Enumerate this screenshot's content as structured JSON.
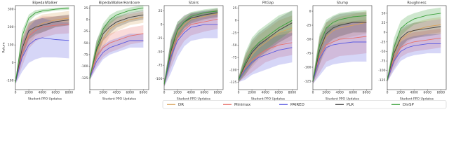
{
  "chart_data": [
    {
      "type": "line",
      "title": "BipedalWalker",
      "ylabel": "Return",
      "xlabel": "Student PPO Updates",
      "x": [
        0,
        1000,
        2000,
        3000,
        4000,
        6000,
        8000
      ],
      "xlim": [
        0,
        8800
      ],
      "xticks": [
        0,
        2000,
        4000,
        6000,
        8000
      ],
      "ylim": [
        -150,
        320
      ],
      "yticks": [
        -100,
        0,
        100,
        200,
        300
      ],
      "series": [
        {
          "name": "DR",
          "color": "#d9a25b",
          "values": [
            -110,
            80,
            160,
            200,
            220,
            240,
            250
          ],
          "std": [
            10,
            60,
            60,
            50,
            50,
            40,
            40
          ]
        },
        {
          "name": "Minimax",
          "color": "#e8706a",
          "values": [
            -110,
            50,
            150,
            180,
            200,
            210,
            215
          ],
          "std": [
            10,
            70,
            70,
            60,
            60,
            50,
            50
          ]
        },
        {
          "name": "PAIRED",
          "color": "#5a5ae0",
          "values": [
            -110,
            30,
            100,
            130,
            140,
            130,
            125
          ],
          "std": [
            10,
            80,
            100,
            110,
            110,
            100,
            100
          ]
        },
        {
          "name": "PLR",
          "color": "#404040",
          "values": [
            -110,
            80,
            180,
            200,
            210,
            230,
            240
          ],
          "std": [
            10,
            50,
            50,
            40,
            40,
            30,
            30
          ]
        },
        {
          "name": "DivSP",
          "color": "#3aa03a",
          "values": [
            -110,
            150,
            250,
            280,
            290,
            300,
            305
          ],
          "std": [
            10,
            30,
            20,
            15,
            10,
            8,
            8
          ]
        }
      ]
    },
    {
      "type": "line",
      "title": "BipedalWalkerHardcore",
      "xlabel": "Student PPO Updates",
      "x": [
        0,
        1000,
        2000,
        3000,
        4000,
        6000,
        8000
      ],
      "xlim": [
        0,
        8800
      ],
      "xticks": [
        0,
        2000,
        4000,
        6000,
        8000
      ],
      "ylim": [
        -150,
        30
      ],
      "yticks": [
        -125,
        -100,
        -75,
        -50,
        -25,
        0,
        25
      ],
      "series": [
        {
          "name": "DR",
          "color": "#d9a25b",
          "values": [
            -125,
            -70,
            -40,
            -20,
            -10,
            0,
            5
          ],
          "std": [
            5,
            20,
            20,
            15,
            15,
            12,
            12
          ]
        },
        {
          "name": "Minimax",
          "color": "#e8706a",
          "values": [
            -125,
            -80,
            -60,
            -50,
            -45,
            -35,
            -30
          ],
          "std": [
            5,
            20,
            20,
            20,
            20,
            18,
            18
          ]
        },
        {
          "name": "PAIRED",
          "color": "#5a5ae0",
          "values": [
            -125,
            -90,
            -70,
            -60,
            -55,
            -45,
            -45
          ],
          "std": [
            5,
            15,
            15,
            15,
            15,
            15,
            15
          ]
        },
        {
          "name": "PLR",
          "color": "#404040",
          "values": [
            -125,
            -65,
            -30,
            -15,
            -5,
            5,
            10
          ],
          "std": [
            5,
            20,
            15,
            15,
            12,
            10,
            10
          ]
        },
        {
          "name": "DivSP",
          "color": "#3aa03a",
          "values": [
            -125,
            -60,
            -20,
            0,
            10,
            20,
            25
          ],
          "std": [
            5,
            15,
            12,
            10,
            8,
            6,
            6
          ]
        }
      ]
    },
    {
      "type": "line",
      "title": "Stairs",
      "xlabel": "Student PPO Updates",
      "x": [
        0,
        1000,
        2000,
        3000,
        4000,
        6000,
        8000
      ],
      "xlim": [
        0,
        8800
      ],
      "xticks": [
        0,
        2000,
        4000,
        6000,
        8000
      ],
      "ylim": [
        -120,
        35
      ],
      "yticks": [
        -100,
        -75,
        -50,
        -25,
        0,
        25
      ],
      "series": [
        {
          "name": "DR",
          "color": "#d9a25b",
          "values": [
            -110,
            -50,
            -15,
            0,
            10,
            15,
            20
          ],
          "std": [
            5,
            20,
            15,
            12,
            10,
            8,
            8
          ]
        },
        {
          "name": "Minimax",
          "color": "#e8706a",
          "values": [
            -110,
            -55,
            -25,
            -10,
            0,
            5,
            10
          ],
          "std": [
            5,
            25,
            25,
            20,
            20,
            18,
            18
          ]
        },
        {
          "name": "PAIRED",
          "color": "#5a5ae0",
          "values": [
            -110,
            -60,
            -30,
            -15,
            -5,
            0,
            0
          ],
          "std": [
            5,
            30,
            30,
            25,
            25,
            25,
            25
          ]
        },
        {
          "name": "PLR",
          "color": "#404040",
          "values": [
            -110,
            -50,
            -10,
            5,
            12,
            18,
            22
          ],
          "std": [
            5,
            20,
            15,
            12,
            10,
            8,
            8
          ]
        },
        {
          "name": "DivSP",
          "color": "#3aa03a",
          "values": [
            -110,
            -45,
            -10,
            5,
            15,
            22,
            25
          ],
          "std": [
            5,
            20,
            15,
            10,
            8,
            6,
            6
          ]
        }
      ]
    },
    {
      "type": "line",
      "title": "PitGap",
      "xlabel": "Student PPO Updates",
      "x": [
        0,
        1000,
        2000,
        3000,
        4000,
        6000,
        8000
      ],
      "xlim": [
        0,
        8800
      ],
      "xticks": [
        0,
        2000,
        4000,
        6000,
        8000
      ],
      "ylim": [
        -140,
        30
      ],
      "yticks": [
        -125,
        -100,
        -75,
        -50,
        -25,
        0,
        25
      ],
      "series": [
        {
          "name": "DR",
          "color": "#d9a25b",
          "values": [
            -120,
            -90,
            -70,
            -55,
            -45,
            -25,
            -15
          ],
          "std": [
            5,
            20,
            25,
            25,
            25,
            25,
            25
          ]
        },
        {
          "name": "Minimax",
          "color": "#e8706a",
          "values": [
            -120,
            -95,
            -80,
            -70,
            -60,
            -50,
            -45
          ],
          "std": [
            5,
            20,
            25,
            25,
            25,
            25,
            25
          ]
        },
        {
          "name": "PAIRED",
          "color": "#5a5ae0",
          "values": [
            -120,
            -100,
            -85,
            -75,
            -70,
            -60,
            -55
          ],
          "std": [
            5,
            20,
            25,
            30,
            30,
            30,
            30
          ]
        },
        {
          "name": "PLR",
          "color": "#404040",
          "values": [
            -120,
            -90,
            -65,
            -50,
            -40,
            -20,
            -5
          ],
          "std": [
            5,
            20,
            25,
            25,
            25,
            25,
            25
          ]
        },
        {
          "name": "DivSP",
          "color": "#3aa03a",
          "values": [
            -120,
            -85,
            -60,
            -45,
            -35,
            -15,
            0
          ],
          "std": [
            5,
            20,
            25,
            25,
            25,
            25,
            20
          ]
        }
      ]
    },
    {
      "type": "line",
      "title": "Stump",
      "xlabel": "Student PPO Updates",
      "x": [
        0,
        1000,
        2000,
        3000,
        4000,
        6000,
        8000
      ],
      "xlim": [
        0,
        8800
      ],
      "xticks": [
        0,
        2000,
        4000,
        6000,
        8000
      ],
      "ylim": [
        -140,
        10
      ],
      "yticks": [
        -125,
        -100,
        -75,
        -50,
        -25,
        0
      ],
      "series": [
        {
          "name": "DR",
          "color": "#d9a25b",
          "values": [
            -125,
            -70,
            -45,
            -35,
            -30,
            -25,
            -20
          ],
          "std": [
            5,
            25,
            25,
            20,
            20,
            20,
            20
          ]
        },
        {
          "name": "Minimax",
          "color": "#e8706a",
          "values": [
            -125,
            -80,
            -60,
            -55,
            -50,
            -48,
            -45
          ],
          "std": [
            5,
            30,
            30,
            30,
            30,
            30,
            30
          ]
        },
        {
          "name": "PAIRED",
          "color": "#5a5ae0",
          "values": [
            -125,
            -85,
            -65,
            -60,
            -58,
            -55,
            -55
          ],
          "std": [
            5,
            30,
            35,
            35,
            35,
            35,
            35
          ]
        },
        {
          "name": "PLR",
          "color": "#404040",
          "values": [
            -125,
            -70,
            -40,
            -30,
            -25,
            -20,
            -20
          ],
          "std": [
            5,
            25,
            20,
            20,
            20,
            18,
            18
          ]
        },
        {
          "name": "DivSP",
          "color": "#3aa03a",
          "values": [
            -125,
            -60,
            -30,
            -20,
            -15,
            -10,
            -8
          ],
          "std": [
            5,
            20,
            15,
            12,
            12,
            10,
            10
          ]
        }
      ]
    },
    {
      "type": "line",
      "title": "Roughness",
      "xlabel": "Student PPO Updates",
      "x": [
        0,
        1000,
        2000,
        3000,
        4000,
        6000,
        8000
      ],
      "xlim": [
        0,
        8800
      ],
      "xticks": [
        0,
        2000,
        4000,
        6000,
        8000
      ],
      "ylim": [
        -150,
        70
      ],
      "yticks": [
        -125,
        -100,
        -75,
        -50,
        -25,
        0,
        25,
        50
      ],
      "series": [
        {
          "name": "DR",
          "color": "#d9a25b",
          "values": [
            -125,
            -60,
            -20,
            -5,
            5,
            15,
            20
          ],
          "std": [
            5,
            25,
            25,
            20,
            20,
            20,
            20
          ]
        },
        {
          "name": "Minimax",
          "color": "#e8706a",
          "values": [
            -125,
            -70,
            -40,
            -30,
            -25,
            -20,
            -15
          ],
          "std": [
            5,
            25,
            25,
            25,
            25,
            25,
            25
          ]
        },
        {
          "name": "PAIRED",
          "color": "#5a5ae0",
          "values": [
            -125,
            -75,
            -50,
            -40,
            -35,
            -30,
            -30
          ],
          "std": [
            5,
            25,
            25,
            25,
            25,
            25,
            25
          ]
        },
        {
          "name": "PLR",
          "color": "#404040",
          "values": [
            -125,
            -55,
            -15,
            0,
            5,
            10,
            15
          ],
          "std": [
            5,
            25,
            25,
            20,
            20,
            20,
            20
          ]
        },
        {
          "name": "DivSP",
          "color": "#3aa03a",
          "values": [
            -125,
            -40,
            10,
            25,
            35,
            45,
            50
          ],
          "std": [
            5,
            25,
            20,
            18,
            15,
            15,
            15
          ]
        }
      ]
    }
  ]
}
